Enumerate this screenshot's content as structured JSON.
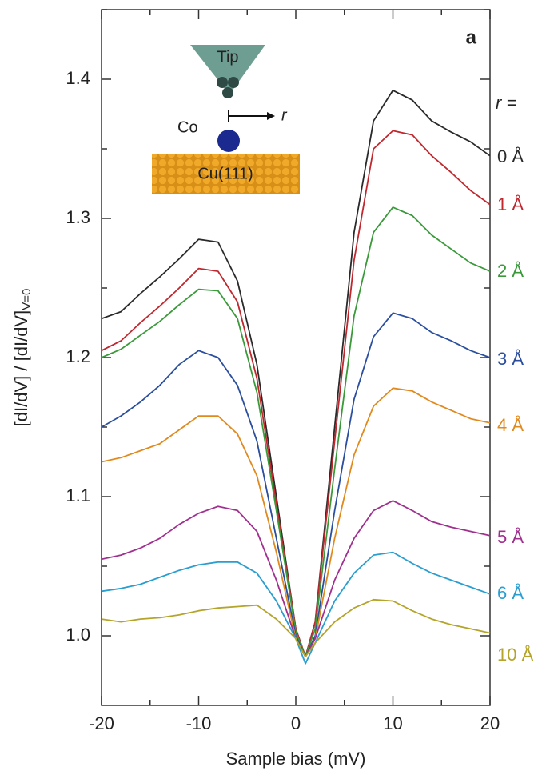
{
  "chart_data": {
    "type": "line",
    "panel_label": "a",
    "xlabel": "Sample bias (mV)",
    "ylabel": "[dI/dV] / [dI/dV]",
    "ylabel_sub": "V=0",
    "legend_title": "r =",
    "inset": {
      "tip": "Tip",
      "adatom": "Co",
      "distance": "r",
      "substrate": "Cu(111)"
    },
    "x": [
      -20,
      -18,
      -16,
      -14,
      -12,
      -10,
      -8,
      -6,
      -4,
      -2,
      0,
      1,
      2,
      4,
      6,
      8,
      10,
      12,
      14,
      16,
      18,
      20
    ],
    "series": [
      {
        "name": "0 Å",
        "color": "#2a2a2a",
        "values": [
          1.228,
          1.233,
          1.246,
          1.258,
          1.271,
          1.285,
          1.283,
          1.255,
          1.195,
          1.1,
          1.005,
          0.985,
          1.01,
          1.15,
          1.29,
          1.37,
          1.392,
          1.385,
          1.37,
          1.362,
          1.355,
          1.345
        ]
      },
      {
        "name": "1 Å",
        "color": "#c0282f",
        "values": [
          1.205,
          1.212,
          1.225,
          1.237,
          1.25,
          1.264,
          1.262,
          1.24,
          1.185,
          1.095,
          1.005,
          0.985,
          1.01,
          1.14,
          1.27,
          1.35,
          1.363,
          1.36,
          1.345,
          1.333,
          1.32,
          1.31
        ]
      },
      {
        "name": "2 Å",
        "color": "#3a9a3a",
        "values": [
          1.2,
          1.206,
          1.216,
          1.226,
          1.238,
          1.249,
          1.248,
          1.228,
          1.175,
          1.09,
          1.003,
          0.985,
          1.005,
          1.12,
          1.23,
          1.29,
          1.308,
          1.302,
          1.288,
          1.278,
          1.268,
          1.262
        ]
      },
      {
        "name": "3 Å",
        "color": "#2b4f9e",
        "values": [
          1.15,
          1.158,
          1.168,
          1.18,
          1.195,
          1.205,
          1.2,
          1.18,
          1.14,
          1.07,
          1.0,
          0.985,
          1.0,
          1.09,
          1.17,
          1.215,
          1.232,
          1.228,
          1.218,
          1.212,
          1.205,
          1.2
        ]
      },
      {
        "name": "4 Å",
        "color": "#e08a1e",
        "values": [
          1.125,
          1.128,
          1.133,
          1.138,
          1.148,
          1.158,
          1.158,
          1.145,
          1.115,
          1.06,
          0.998,
          0.985,
          0.998,
          1.07,
          1.13,
          1.165,
          1.178,
          1.176,
          1.168,
          1.162,
          1.156,
          1.153
        ]
      },
      {
        "name": "5 Å",
        "color": "#a0308f",
        "values": [
          1.055,
          1.058,
          1.063,
          1.07,
          1.08,
          1.088,
          1.093,
          1.09,
          1.075,
          1.04,
          0.998,
          0.985,
          0.998,
          1.04,
          1.07,
          1.09,
          1.097,
          1.09,
          1.082,
          1.078,
          1.075,
          1.072
        ]
      },
      {
        "name": "6 Å",
        "color": "#2a9ed0",
        "values": [
          1.032,
          1.034,
          1.037,
          1.042,
          1.047,
          1.051,
          1.053,
          1.053,
          1.045,
          1.025,
          0.998,
          0.98,
          0.995,
          1.025,
          1.045,
          1.058,
          1.06,
          1.052,
          1.045,
          1.04,
          1.035,
          1.03
        ]
      },
      {
        "name": "10 Å",
        "color": "#b5a42a",
        "values": [
          1.012,
          1.01,
          1.012,
          1.013,
          1.015,
          1.018,
          1.02,
          1.021,
          1.022,
          1.012,
          0.998,
          0.985,
          0.995,
          1.01,
          1.02,
          1.026,
          1.025,
          1.018,
          1.012,
          1.008,
          1.005,
          1.002
        ]
      }
    ],
    "xlim": [
      -20,
      20
    ],
    "xticks": [
      -20,
      -10,
      0,
      10,
      20
    ],
    "ylim": [
      0.95,
      1.45
    ],
    "yticks": [
      {
        "value": 1.0,
        "label": "1.0"
      },
      1.1,
      1.2,
      1.3,
      1.4
    ]
  }
}
